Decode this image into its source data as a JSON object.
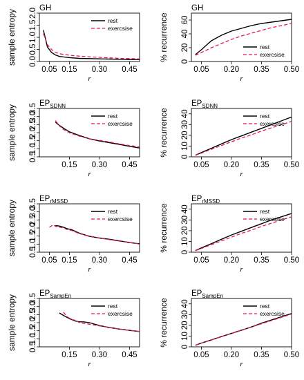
{
  "legend": {
    "rest": "rest",
    "exercise": "exercsise"
  },
  "colors": {
    "rest": "#000000",
    "exercise": "#e8174a"
  },
  "x_label": "r",
  "chart_data": [
    {
      "type": "line",
      "title": "GH",
      "title_sub": "",
      "ylabel": "sample entropy",
      "xlabel": "r",
      "xlim": [
        0.0,
        0.5
      ],
      "ylim": [
        0.0,
        2.0
      ],
      "xticks": [
        "0.05",
        "0.15",
        "0.30",
        "0.45"
      ],
      "xtick_values": [
        0.05,
        0.15,
        0.3,
        0.45
      ],
      "yticks": [
        "0.0",
        "0.5",
        "1.0",
        "1.5",
        "2.0"
      ],
      "ytick_values": [
        0.0,
        0.5,
        1.0,
        1.5,
        2.0
      ],
      "legend_position": "top-right",
      "series": [
        {
          "name": "rest",
          "x": [
            0.02,
            0.03,
            0.04,
            0.06,
            0.08,
            0.1,
            0.15,
            0.2,
            0.25,
            0.3,
            0.35,
            0.4,
            0.45,
            0.5
          ],
          "y": [
            1.3,
            0.95,
            0.6,
            0.38,
            0.27,
            0.21,
            0.16,
            0.13,
            0.12,
            0.11,
            0.1,
            0.09,
            0.08,
            0.08
          ]
        },
        {
          "name": "exercsise",
          "x": [
            0.02,
            0.03,
            0.04,
            0.06,
            0.08,
            0.1,
            0.15,
            0.2,
            0.25,
            0.3,
            0.35,
            0.4,
            0.45,
            0.5
          ],
          "y": [
            1.15,
            0.95,
            0.7,
            0.5,
            0.38,
            0.32,
            0.26,
            0.22,
            0.19,
            0.17,
            0.15,
            0.13,
            0.12,
            0.11
          ]
        }
      ]
    },
    {
      "type": "line",
      "title": "GH",
      "title_sub": "",
      "ylabel": "% recurrence",
      "xlabel": "r",
      "xlim": [
        0.0,
        0.5
      ],
      "ylim": [
        0,
        70
      ],
      "xticks": [
        "0.05",
        "0.20",
        "0.35",
        "0.50"
      ],
      "xtick_values": [
        0.05,
        0.2,
        0.35,
        0.5
      ],
      "yticks": [
        "0",
        "20",
        "40",
        "60"
      ],
      "ytick_values": [
        0,
        20,
        40,
        60
      ],
      "legend_position": "bottom-right",
      "series": [
        {
          "name": "rest",
          "x": [
            0.02,
            0.05,
            0.08,
            0.1,
            0.15,
            0.2,
            0.25,
            0.3,
            0.35,
            0.4,
            0.45,
            0.5
          ],
          "y": [
            10,
            17,
            25,
            30,
            38,
            44,
            48,
            52,
            55,
            57,
            59,
            61
          ]
        },
        {
          "name": "exercsise",
          "x": [
            0.02,
            0.05,
            0.08,
            0.1,
            0.15,
            0.2,
            0.25,
            0.3,
            0.35,
            0.4,
            0.45,
            0.5
          ],
          "y": [
            9,
            13,
            17,
            20,
            26,
            32,
            37,
            41,
            45,
            49,
            52,
            55
          ]
        }
      ]
    },
    {
      "type": "line",
      "title": "EP",
      "title_sub": "SDNN",
      "ylabel": "sample entropy",
      "xlabel": "r",
      "xlim": [
        0.0,
        0.5
      ],
      "ylim": [
        0.5,
        3.5
      ],
      "xticks": [
        "0.15",
        "0.30",
        "0.45"
      ],
      "xtick_values": [
        0.15,
        0.3,
        0.45
      ],
      "yticks": [
        "0.5",
        "1.0",
        "1.5",
        "2.0",
        "2.5",
        "3.0",
        "3.5"
      ],
      "ytick_values": [
        0.5,
        1.0,
        1.5,
        2.0,
        2.5,
        3.0,
        3.5
      ],
      "legend_position": "top-right",
      "series": [
        {
          "name": "rest",
          "x": [
            0.08,
            0.1,
            0.12,
            0.15,
            0.2,
            0.25,
            0.3,
            0.35,
            0.4,
            0.45,
            0.5
          ],
          "y": [
            2.65,
            2.45,
            2.28,
            2.05,
            1.82,
            1.62,
            1.48,
            1.38,
            1.27,
            1.15,
            1.05
          ]
        },
        {
          "name": "exercsise",
          "x": [
            0.08,
            0.1,
            0.12,
            0.15,
            0.2,
            0.25,
            0.3,
            0.35,
            0.4,
            0.45,
            0.5
          ],
          "y": [
            2.75,
            2.42,
            2.2,
            2.0,
            1.78,
            1.62,
            1.52,
            1.42,
            1.3,
            1.2,
            1.12
          ]
        }
      ]
    },
    {
      "type": "line",
      "title": "EP",
      "title_sub": "SDNN",
      "ylabel": "% recurrence",
      "xlabel": "r",
      "xlim": [
        0.0,
        0.5
      ],
      "ylim": [
        0,
        45
      ],
      "xticks": [
        "0.05",
        "0.20",
        "0.35",
        "0.50"
      ],
      "xtick_values": [
        0.05,
        0.2,
        0.35,
        0.5
      ],
      "yticks": [
        "0",
        "10",
        "20",
        "30",
        "40"
      ],
      "ytick_values": [
        0,
        10,
        20,
        30,
        40
      ],
      "legend_position": "top-right",
      "series": [
        {
          "name": "rest",
          "x": [
            0.02,
            0.05,
            0.1,
            0.15,
            0.2,
            0.25,
            0.3,
            0.35,
            0.4,
            0.45,
            0.5
          ],
          "y": [
            1.5,
            4,
            8,
            12,
            16,
            19.5,
            23,
            26.5,
            30,
            33.5,
            37
          ]
        },
        {
          "name": "exercsise",
          "x": [
            0.02,
            0.05,
            0.1,
            0.15,
            0.2,
            0.25,
            0.3,
            0.35,
            0.4,
            0.45,
            0.5
          ],
          "y": [
            1.5,
            3.5,
            7,
            10.5,
            14,
            17.5,
            20.5,
            24,
            27,
            30,
            33
          ]
        }
      ]
    },
    {
      "type": "line",
      "title": "EP",
      "title_sub": "rMSSD",
      "ylabel": "sample entropy",
      "xlabel": "r",
      "xlim": [
        0.0,
        0.5
      ],
      "ylim": [
        0.5,
        3.5
      ],
      "xticks": [
        "0.05",
        "0.15",
        "0.30",
        "0.45"
      ],
      "xtick_values": [
        0.05,
        0.15,
        0.3,
        0.45
      ],
      "yticks": [
        "0.5",
        "1.0",
        "1.5",
        "2.0",
        "2.5",
        "3.0",
        "3.5"
      ],
      "ytick_values": [
        0.5,
        1.0,
        1.5,
        2.0,
        2.5,
        3.0,
        3.5
      ],
      "legend_position": "top-right",
      "series": [
        {
          "name": "rest",
          "x": [
            0.08,
            0.1,
            0.12,
            0.14,
            0.16,
            0.2,
            0.25,
            0.3,
            0.35,
            0.4,
            0.45,
            0.5
          ],
          "y": [
            2.15,
            2.12,
            2.05,
            1.95,
            1.9,
            1.68,
            1.48,
            1.38,
            1.3,
            1.2,
            1.1,
            1.02
          ]
        },
        {
          "name": "exercsise",
          "x": [
            0.05,
            0.07,
            0.08,
            0.1,
            0.12,
            0.14,
            0.16,
            0.2,
            0.25,
            0.3,
            0.35,
            0.4,
            0.45,
            0.5
          ],
          "y": [
            2.05,
            2.2,
            2.1,
            2.05,
            2.0,
            1.9,
            1.85,
            1.65,
            1.5,
            1.38,
            1.28,
            1.18,
            1.1,
            1.02
          ]
        }
      ]
    },
    {
      "type": "line",
      "title": "EP",
      "title_sub": "rMSSD",
      "ylabel": "% recurrence",
      "xlabel": "r",
      "xlim": [
        0.0,
        0.5
      ],
      "ylim": [
        0,
        45
      ],
      "xticks": [
        "0.05",
        "0.20",
        "0.35",
        "0.50"
      ],
      "xtick_values": [
        0.05,
        0.2,
        0.35,
        0.5
      ],
      "yticks": [
        "0",
        "10",
        "20",
        "30",
        "40"
      ],
      "ytick_values": [
        0,
        10,
        20,
        30,
        40
      ],
      "legend_position": "top-right",
      "series": [
        {
          "name": "rest",
          "x": [
            0.02,
            0.05,
            0.1,
            0.15,
            0.2,
            0.25,
            0.3,
            0.35,
            0.4,
            0.45,
            0.5
          ],
          "y": [
            1.5,
            4,
            8,
            12,
            16,
            19.5,
            23,
            26.5,
            30,
            33,
            36
          ]
        },
        {
          "name": "exercsise",
          "x": [
            0.02,
            0.05,
            0.1,
            0.15,
            0.2,
            0.25,
            0.3,
            0.35,
            0.4,
            0.45,
            0.5
          ],
          "y": [
            1.5,
            3.5,
            7,
            10.5,
            14,
            17.5,
            20.5,
            24,
            27,
            30,
            33
          ]
        }
      ]
    },
    {
      "type": "line",
      "title": "EP",
      "title_sub": "SampEn",
      "ylabel": "sample entropy",
      "xlabel": "r",
      "xlim": [
        0.0,
        0.5
      ],
      "ylim": [
        0.5,
        3.5
      ],
      "xticks": [
        "0.15",
        "0.30",
        "0.45"
      ],
      "xtick_values": [
        0.15,
        0.3,
        0.45
      ],
      "yticks": [
        "0.5",
        "1.0",
        "1.5",
        "2.0",
        "2.5",
        "3.0",
        "3.5"
      ],
      "ytick_values": [
        0.5,
        1.0,
        1.5,
        2.0,
        2.5,
        3.0,
        3.5
      ],
      "legend_position": "top-right",
      "series": [
        {
          "name": "rest",
          "x": [
            0.1,
            0.12,
            0.15,
            0.18,
            0.2,
            0.22,
            0.25,
            0.3,
            0.35,
            0.4,
            0.45,
            0.5
          ],
          "y": [
            2.6,
            2.45,
            2.25,
            2.1,
            2.05,
            2.05,
            2.0,
            1.82,
            1.7,
            1.6,
            1.52,
            1.45
          ]
        },
        {
          "name": "exercsise",
          "x": [
            0.12,
            0.14,
            0.16,
            0.18,
            0.2,
            0.25,
            0.3,
            0.35,
            0.4,
            0.45,
            0.5
          ],
          "y": [
            2.65,
            2.35,
            2.2,
            2.15,
            2.0,
            1.9,
            1.8,
            1.7,
            1.6,
            1.52,
            1.45
          ]
        }
      ]
    },
    {
      "type": "line",
      "title": "EP",
      "title_sub": "SampEn",
      "ylabel": "% recurrence",
      "xlabel": "r",
      "xlim": [
        0.0,
        0.5
      ],
      "ylim": [
        0,
        45
      ],
      "xticks": [
        "0.05",
        "0.20",
        "0.35",
        "0.50"
      ],
      "xtick_values": [
        0.05,
        0.2,
        0.35,
        0.5
      ],
      "yticks": [
        "0",
        "10",
        "20",
        "30",
        "40"
      ],
      "ytick_values": [
        0,
        10,
        20,
        30,
        40
      ],
      "legend_position": "top-right",
      "series": [
        {
          "name": "rest",
          "x": [
            0.02,
            0.05,
            0.1,
            0.15,
            0.2,
            0.25,
            0.3,
            0.35,
            0.4,
            0.45,
            0.5
          ],
          "y": [
            1.5,
            3.5,
            6.5,
            9.5,
            12.5,
            15.5,
            18.5,
            22,
            25,
            28,
            31
          ]
        },
        {
          "name": "exercsise",
          "x": [
            0.02,
            0.05,
            0.1,
            0.15,
            0.2,
            0.25,
            0.3,
            0.35,
            0.4,
            0.45,
            0.5
          ],
          "y": [
            1.5,
            3.5,
            6.5,
            9.5,
            12.5,
            15.5,
            18.5,
            21.5,
            24.5,
            27.5,
            30.5
          ]
        }
      ]
    }
  ]
}
